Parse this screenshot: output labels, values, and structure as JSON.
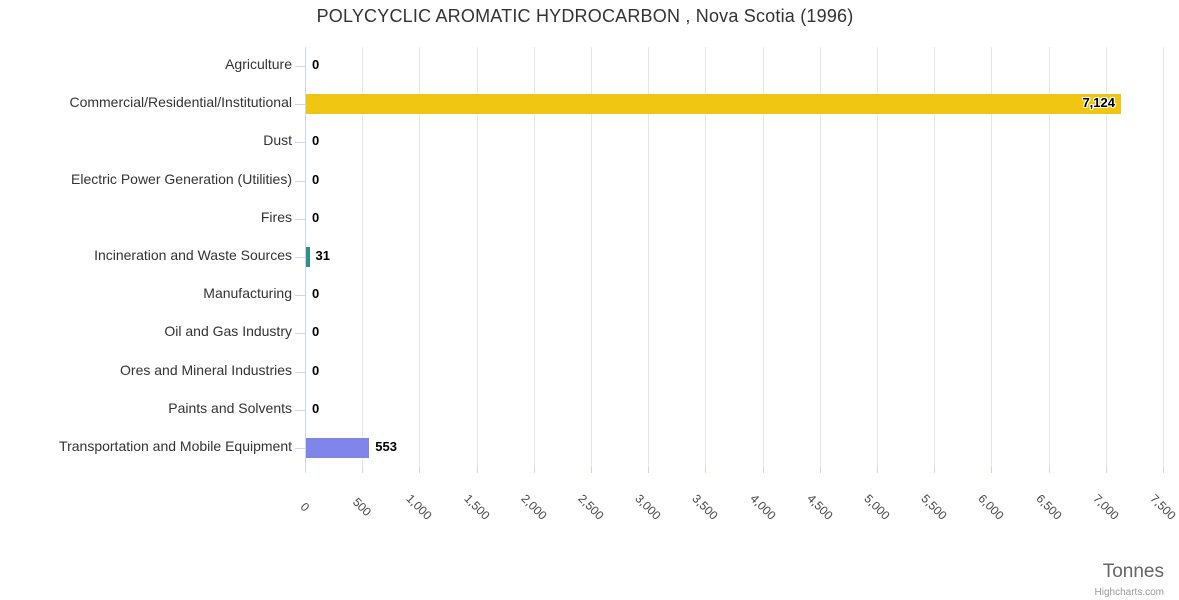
{
  "credits": "Highcharts.com",
  "chart_data": {
    "type": "bar",
    "title": "POLYCYCLIC AROMATIC HYDROCARBON , Nova Scotia (1996)",
    "xlabel": "Tonnes",
    "ylabel": "",
    "categories": [
      "Agriculture",
      "Commercial/Residential/Institutional",
      "Dust",
      "Electric Power Generation (Utilities)",
      "Fires",
      "Incineration and Waste Sources",
      "Manufacturing",
      "Oil and Gas Industry",
      "Ores and Mineral Industries",
      "Paints and Solvents",
      "Transportation and Mobile Equipment"
    ],
    "values": [
      0,
      7124,
      0,
      0,
      0,
      31,
      0,
      0,
      0,
      0,
      553
    ],
    "value_labels": [
      "0",
      "7,124",
      "0",
      "0",
      "0",
      "31",
      "0",
      "0",
      "0",
      "0",
      "553"
    ],
    "point_colors": [
      null,
      "#f0c613",
      null,
      null,
      null,
      "#2b908f",
      null,
      null,
      null,
      null,
      "#8085e9"
    ],
    "xlim": [
      0,
      7500
    ],
    "tick_interval": 500,
    "tick_labels": [
      "0",
      "500",
      "1,000",
      "1,500",
      "2,000",
      "2,500",
      "3,000",
      "3,500",
      "4,000",
      "4,500",
      "5,000",
      "5,500",
      "6,000",
      "6,500",
      "7,000",
      "7,500"
    ],
    "grid": true,
    "legend": false,
    "orientation": "horizontal"
  }
}
